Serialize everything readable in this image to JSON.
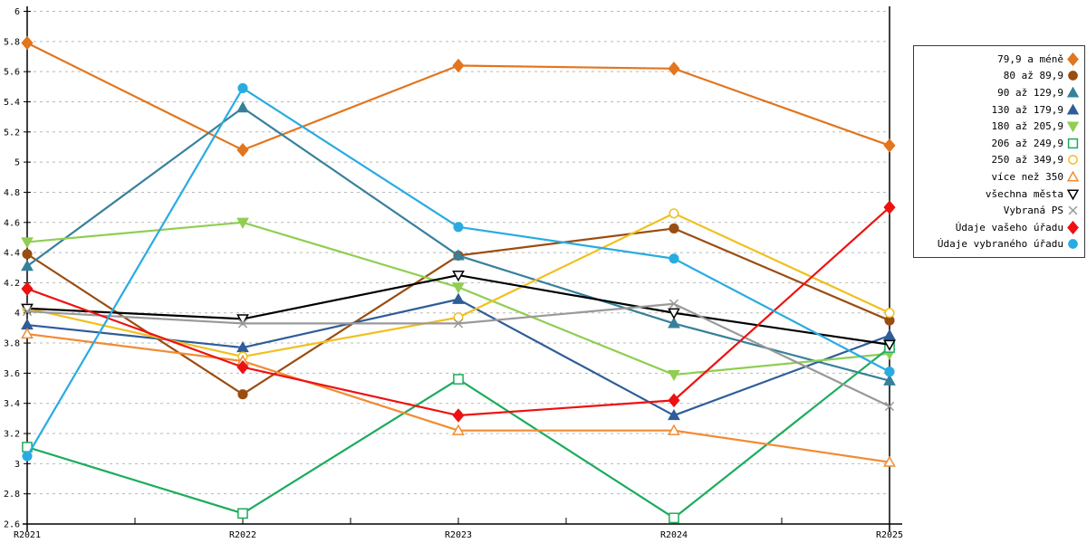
{
  "chart_data": {
    "type": "line",
    "title": "",
    "xlabel": "",
    "ylabel": "",
    "categories": [
      "R2021",
      "R2022",
      "R2023",
      "R2024",
      "R2025"
    ],
    "ylim": [
      2.6,
      6.0
    ],
    "ytick_step": 0.2,
    "ytick_labels": [
      "6",
      "5.8",
      "5.6",
      "5.4",
      "5.2",
      "5",
      "4.8",
      "4.6",
      "4.4",
      "4.2",
      "4",
      "3.8",
      "3.6",
      "3.4",
      "3.2",
      "3",
      "2.8",
      "2.6"
    ],
    "grid": "horizontal-dashed",
    "gridline_color": "#b8b8b8",
    "axis_color": "#000000",
    "legend_position": "outside-top-right",
    "series": [
      {
        "name": "79,9 a méně",
        "color": "#E2751D",
        "marker": "diamond",
        "fill": "solid",
        "values": [
          5.79,
          5.08,
          5.64,
          5.62,
          5.11
        ]
      },
      {
        "name": "80 až 89,9",
        "color": "#9A4D10",
        "marker": "circle",
        "fill": "solid",
        "values": [
          4.39,
          3.46,
          4.38,
          4.56,
          3.95
        ]
      },
      {
        "name": "90 až 129,9",
        "color": "#37809B",
        "marker": "triangle-up",
        "fill": "solid",
        "values": [
          4.31,
          5.36,
          4.38,
          3.93,
          3.55
        ]
      },
      {
        "name": "130 až 179,9",
        "color": "#2F5D99",
        "marker": "triangle-up",
        "fill": "solid",
        "values": [
          3.92,
          3.77,
          4.09,
          3.32,
          3.85
        ]
      },
      {
        "name": "180 až 205,9",
        "color": "#8FCE52",
        "marker": "triangle-down",
        "fill": "solid",
        "values": [
          4.47,
          4.6,
          4.17,
          3.59,
          3.73
        ]
      },
      {
        "name": "206 až 249,9",
        "color": "#1CAC5C",
        "marker": "square",
        "fill": "hollow",
        "values": [
          3.11,
          2.67,
          3.56,
          2.64,
          3.77
        ]
      },
      {
        "name": "250 až 349,9",
        "color": "#F0C020",
        "marker": "circle",
        "fill": "hollow",
        "values": [
          4.03,
          3.71,
          3.97,
          4.66,
          4.0
        ]
      },
      {
        "name": "více než 350",
        "color": "#F28B32",
        "marker": "triangle-up",
        "fill": "hollow",
        "values": [
          3.86,
          3.68,
          3.22,
          3.22,
          3.01
        ]
      },
      {
        "name": "všechna města",
        "color": "#000000",
        "marker": "triangle-down",
        "fill": "hollow",
        "values": [
          4.03,
          3.96,
          4.25,
          4.0,
          3.79
        ]
      },
      {
        "name": "Vybraná PS",
        "color": "#999999",
        "marker": "x",
        "fill": "line",
        "values": [
          4.01,
          3.93,
          3.93,
          4.06,
          3.38
        ]
      },
      {
        "name": "Údaje vašeho úřadu",
        "color": "#EE1111",
        "marker": "diamond",
        "fill": "solid",
        "values": [
          4.16,
          3.64,
          3.32,
          3.42,
          4.7
        ]
      },
      {
        "name": "Údaje vybraného úřadu",
        "color": "#29ABE2",
        "marker": "circle",
        "fill": "solid",
        "values": [
          3.05,
          5.49,
          4.57,
          4.36,
          3.61
        ]
      }
    ]
  }
}
